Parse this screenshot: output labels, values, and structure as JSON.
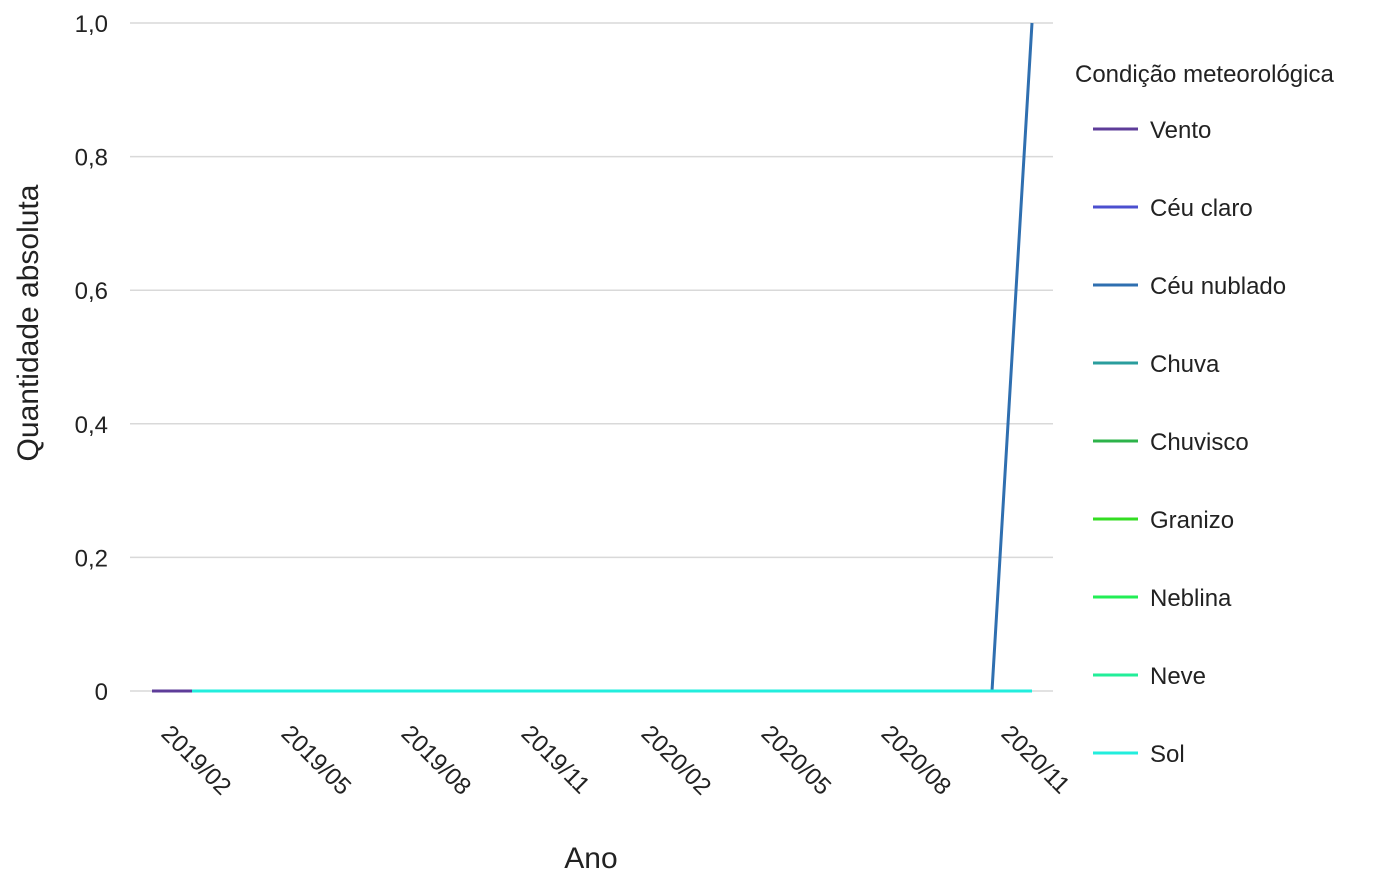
{
  "chart_data": {
    "type": "line",
    "x_label": "Ano",
    "y_label": "Quantidade absoluta",
    "legend_title": "Condição meteorológica",
    "x": [
      "2019/02",
      "2019/03",
      "2019/04",
      "2019/05",
      "2019/06",
      "2019/07",
      "2019/08",
      "2019/09",
      "2019/10",
      "2019/11",
      "2019/12",
      "2020/01",
      "2020/02",
      "2020/03",
      "2020/04",
      "2020/05",
      "2020/06",
      "2020/07",
      "2020/08",
      "2020/09",
      "2020/10",
      "2020/11",
      "2020/12"
    ],
    "xticks": [
      "2019/02",
      "2019/05",
      "2019/08",
      "2019/11",
      "2020/02",
      "2020/05",
      "2020/08",
      "2020/11"
    ],
    "ylim": [
      0,
      1
    ],
    "yticks": [
      0,
      {
        "value": 0.2,
        "label": "0,2"
      },
      {
        "value": 0.4,
        "label": "0,4"
      },
      {
        "value": 0.6,
        "label": "0,6"
      },
      {
        "value": 0.8,
        "label": "0,8"
      },
      {
        "value": 1,
        "label": "1,0"
      }
    ],
    "grid": true,
    "legend": "right",
    "series": [
      {
        "name": "Vento",
        "color": "#5e3c99",
        "values": [
          0,
          0,
          0,
          0,
          0,
          0,
          0,
          0,
          0,
          0,
          0,
          0,
          0,
          0,
          0,
          0,
          0,
          0,
          0,
          0,
          0,
          0,
          0
        ]
      },
      {
        "name": "Céu claro",
        "color": "#4b4fcf",
        "values": [
          null,
          0,
          0,
          0,
          0,
          0,
          0,
          0,
          0,
          0,
          0,
          0,
          0,
          0,
          0,
          0,
          0,
          0,
          0,
          0,
          0,
          0,
          0
        ]
      },
      {
        "name": "Céu nublado",
        "color": "#2f6fb0",
        "values": [
          null,
          0,
          0,
          0,
          0,
          0,
          0,
          0,
          0,
          0,
          0,
          0,
          0,
          0,
          0,
          0,
          0,
          0,
          0,
          0,
          0,
          0,
          1
        ]
      },
      {
        "name": "Chuva",
        "color": "#2a9d9d",
        "values": [
          null,
          0,
          0,
          0,
          0,
          0,
          0,
          0,
          0,
          0,
          0,
          0,
          0,
          0,
          0,
          0,
          0,
          0,
          0,
          0,
          0,
          0,
          0
        ]
      },
      {
        "name": "Chuvisco",
        "color": "#2db34a",
        "values": [
          null,
          0,
          0,
          0,
          0,
          0,
          0,
          0,
          0,
          0,
          0,
          0,
          0,
          0,
          0,
          0,
          0,
          0,
          0,
          0,
          0,
          0,
          0
        ]
      },
      {
        "name": "Granizo",
        "color": "#33dd22",
        "values": [
          null,
          0,
          0,
          0,
          0,
          0,
          0,
          0,
          0,
          0,
          0,
          0,
          0,
          0,
          0,
          0,
          0,
          0,
          0,
          0,
          0,
          0,
          0
        ]
      },
      {
        "name": "Neblina",
        "color": "#22ee55",
        "values": [
          null,
          0,
          0,
          0,
          0,
          0,
          0,
          0,
          0,
          0,
          0,
          0,
          0,
          0,
          0,
          0,
          0,
          0,
          0,
          0,
          0,
          0,
          0
        ]
      },
      {
        "name": "Neve",
        "color": "#22ee99",
        "values": [
          null,
          0,
          0,
          0,
          0,
          0,
          0,
          0,
          0,
          0,
          0,
          0,
          0,
          0,
          0,
          0,
          0,
          0,
          0,
          0,
          0,
          0,
          0
        ]
      },
      {
        "name": "Sol",
        "color": "#22eedd",
        "values": [
          null,
          0,
          0,
          0,
          0,
          0,
          0,
          0,
          0,
          0,
          0,
          0,
          0,
          0,
          0,
          0,
          0,
          0,
          0,
          0,
          0,
          0,
          0
        ]
      }
    ]
  }
}
